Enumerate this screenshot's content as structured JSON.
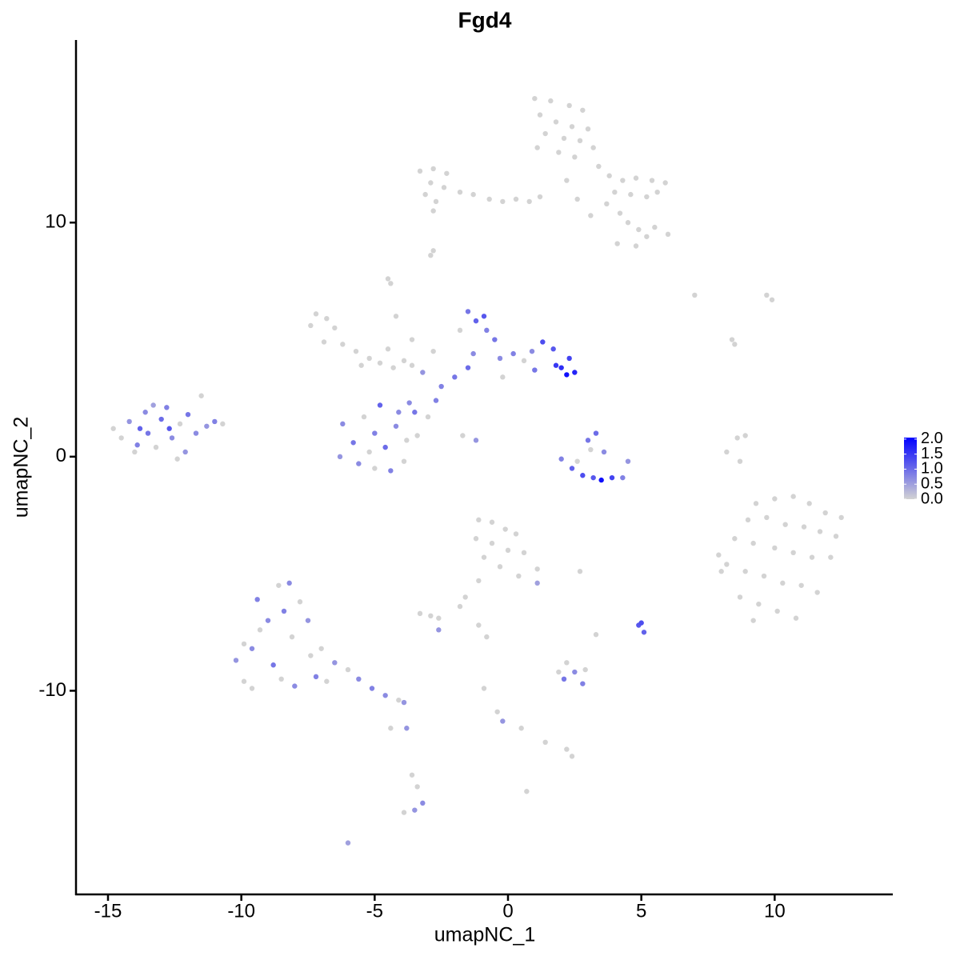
{
  "chart_data": {
    "type": "scatter",
    "title": "Fgd4",
    "xlabel": "umapNC_1",
    "ylabel": "umapNC_2",
    "xlim": [
      -16.2,
      14.4
    ],
    "ylim": [
      -18.7,
      17.8
    ],
    "xticks": [
      -15,
      -10,
      -5,
      0,
      5,
      10
    ],
    "yticks": [
      -10,
      0,
      10
    ],
    "colorscale": {
      "colors": [
        "#d3d3d3",
        "#0000ff"
      ],
      "lim": [
        0,
        2.05
      ],
      "ticks": [
        {
          "value": 0,
          "label": "0.0"
        },
        0.5,
        {
          "value": 1,
          "label": "1.0"
        },
        1.5,
        {
          "value": 2,
          "label": "2.0"
        }
      ]
    },
    "x": [
      1,
      1.6,
      2.3,
      2.8,
      1.2,
      1.8,
      2.4,
      3,
      1.4,
      2.1,
      2.7,
      1.1,
      1.9,
      2.5,
      3.2,
      3.4,
      3.8,
      4.3,
      4.8,
      5.4,
      5.9,
      4,
      4.6,
      5.2,
      5.6,
      3.7,
      4.2,
      4.5,
      4.9,
      5.5,
      6,
      5.2,
      4.1,
      4.8,
      1.2,
      0.8,
      2.6,
      2.2,
      3.1,
      -3.3,
      -2.8,
      -2.3,
      -2.9,
      -2.4,
      -3.1,
      -1.8,
      -1.3,
      -0.7,
      -0.2,
      0.3,
      -2.7,
      -2.8,
      -2.8,
      -2.9,
      -14.5,
      -14.2,
      -13.9,
      -13.6,
      -13.5,
      -13.2,
      -13,
      -12.8,
      -12.6,
      -12.3,
      -12.1,
      -12,
      -11.7,
      -11.5,
      -11.3,
      -11,
      -10.7,
      -14.8,
      -13.8,
      -12.4,
      -12.7,
      -13.3,
      -14,
      -7.4,
      -7.2,
      -6.8,
      -6.5,
      -6.9,
      -6.2,
      -5.7,
      -5.2,
      -4.8,
      -4.3,
      -3.9,
      -3.6,
      -4.5,
      -5.5,
      -4.4,
      -4.5,
      -4.2,
      -3.6,
      -2.8,
      -3.2,
      -3.7,
      -2.5,
      -2,
      -1.5,
      -1.3,
      -1.2,
      -1.5,
      -0.9,
      -0.8,
      -0.5,
      -0.3,
      0.2,
      0.6,
      1,
      1.3,
      1.7,
      2,
      2.2,
      2.5,
      2.3,
      1.8,
      -1.8,
      -0.2,
      0.9,
      -2.7,
      -3,
      -1.7,
      -1.2,
      -6.2,
      -5.8,
      -5.4,
      -5,
      -4.6,
      -4.2,
      -3.8,
      -3.5,
      -5.6,
      -5,
      -4.4,
      -3.9,
      -4.8,
      -6.3,
      -5.2,
      -4.1,
      -3.4,
      2,
      2.4,
      2.8,
      3.2,
      3.5,
      3.9,
      4.3,
      4.5,
      3,
      3.3,
      3.1,
      3.6,
      2.6,
      7,
      8.5,
      8.4,
      9.7,
      9.9,
      8.7,
      8.2,
      8.6,
      8.9,
      9.3,
      10,
      10.7,
      11.3,
      11.9,
      12.5,
      9,
      9.7,
      10.4,
      11.1,
      11.7,
      12.3,
      8.5,
      9.2,
      10,
      10.7,
      11.4,
      12.1,
      8.2,
      8.9,
      9.6,
      10.3,
      11,
      11.6,
      8.7,
      9.4,
      10.1,
      10.8,
      9.2,
      7.9,
      8,
      -10.2,
      -9.9,
      -9.6,
      -9.3,
      -9.4,
      -9,
      -8.8,
      -8.6,
      -8.4,
      -8.1,
      -8,
      -7.8,
      -7.5,
      -7.4,
      -7.2,
      -9.6,
      -8.5,
      -7,
      -6.5,
      -6,
      -5.6,
      -5.1,
      -4.6,
      -4.1,
      -3.9,
      -9.9,
      -8.2,
      -6.8,
      -1.1,
      -0.6,
      -0.1,
      0.3,
      -1.2,
      -0.6,
      0,
      0.6,
      -0.9,
      -0.3,
      1.1,
      -1.1,
      -1.6,
      -1.8,
      1.1,
      2.7,
      0.4,
      -3.3,
      -2.9,
      -2.6,
      -2.6,
      -1.1,
      -0.8,
      4.9,
      5.1,
      5,
      3.3,
      2.2,
      2.5,
      2.1,
      2.8,
      2.9,
      1.9,
      -0.9,
      -0.4,
      -0.2,
      0.5,
      1.4,
      2.2,
      2.4,
      -4.4,
      -3.8,
      -3.6,
      -3.4,
      -3.2,
      -3.5,
      -3.9,
      -6,
      0.7
    ],
    "y": [
      15.3,
      15.2,
      15,
      14.8,
      14.6,
      14.3,
      14.1,
      14,
      13.8,
      13.6,
      13.5,
      13.2,
      13,
      12.8,
      13.2,
      12.4,
      12,
      11.8,
      11.9,
      11.8,
      11.7,
      11.3,
      11.2,
      11.1,
      11.3,
      10.8,
      10.4,
      10,
      9.7,
      9.8,
      9.5,
      9.4,
      9.1,
      9,
      11.1,
      10.9,
      11,
      11.8,
      10.3,
      12.2,
      12.3,
      12.1,
      11.7,
      11.5,
      11.2,
      11.3,
      11.2,
      11,
      10.9,
      11,
      10.9,
      10.5,
      8.8,
      8.6,
      0.8,
      1.5,
      0.5,
      1.9,
      1,
      0.4,
      1.6,
      2.1,
      0.8,
      1.4,
      0.2,
      1.8,
      1,
      2.6,
      1.3,
      1.5,
      1.4,
      1.2,
      1.2,
      -0.1,
      1.2,
      2.2,
      0.2,
      5.6,
      6.1,
      5.9,
      5.5,
      4.9,
      4.8,
      4.5,
      4.2,
      4,
      3.8,
      4.1,
      3.9,
      4.6,
      3.9,
      7.4,
      7.6,
      6,
      5,
      4.5,
      3.6,
      2.3,
      3,
      3.4,
      3.8,
      4.4,
      5.8,
      6.2,
      6,
      5.4,
      5,
      4.2,
      4.4,
      4.1,
      3.7,
      4.9,
      4.6,
      3.8,
      3.5,
      3.6,
      4.2,
      3.9,
      5.4,
      3.4,
      4.5,
      2.4,
      1.7,
      0.9,
      0.7,
      1.4,
      0.6,
      1.7,
      1,
      0.4,
      1.3,
      0.7,
      1.9,
      -0.3,
      -0.5,
      -0.6,
      -0.2,
      2.2,
      0,
      0.2,
      1.9,
      0.9,
      -0.1,
      -0.5,
      -0.8,
      -0.9,
      -1,
      -0.9,
      -0.9,
      -0.2,
      0.7,
      1,
      0.3,
      0.2,
      -0.2,
      6.9,
      4.8,
      5,
      6.9,
      6.7,
      -0.2,
      0.2,
      0.8,
      0.9,
      -2,
      -1.8,
      -1.7,
      -2,
      -2.4,
      -2.6,
      -2.7,
      -2.6,
      -2.9,
      -3,
      -3.2,
      -3.4,
      -3.5,
      -3.7,
      -3.9,
      -4.1,
      -4.3,
      -4.3,
      -4.6,
      -4.9,
      -5.1,
      -5.4,
      -5.5,
      -5.8,
      -6,
      -6.3,
      -6.6,
      -6.9,
      -7,
      -4.2,
      -4.9,
      -8.7,
      -9.6,
      -8.2,
      -7.4,
      -6.1,
      -7,
      -8.9,
      -5.5,
      -6.6,
      -7.7,
      -9.8,
      -6.2,
      -7,
      -8.5,
      -9.4,
      -9.9,
      -9.5,
      -8.2,
      -8.8,
      -9.1,
      -9.5,
      -9.9,
      -10.2,
      -10.4,
      -10.5,
      -8,
      -5.4,
      -9.6,
      -2.7,
      -2.8,
      -3.1,
      -3.3,
      -3.5,
      -3.7,
      -4,
      -4.1,
      -4.3,
      -4.7,
      -4.8,
      -5.3,
      -6,
      -6.4,
      -5.4,
      -4.9,
      -5.1,
      -6.7,
      -6.8,
      -6.9,
      -7.4,
      -7.2,
      -7.7,
      -7.2,
      -7.5,
      -7.1,
      -7.6,
      -8.8,
      -9.2,
      -9.5,
      -9.7,
      -9.1,
      -9.2,
      -9.9,
      -10.9,
      -11.3,
      -11.6,
      -12.2,
      -12.5,
      -12.8,
      -11.6,
      -11.6,
      -13.6,
      -14.1,
      -14.8,
      -15.1,
      -15.2,
      -16.5,
      -14.3
    ],
    "expression": [
      0,
      0,
      0,
      0,
      0,
      0,
      0,
      0,
      0,
      0,
      0,
      0,
      0,
      0,
      0,
      0,
      0,
      0,
      0,
      0,
      0,
      0,
      0,
      0,
      0,
      0,
      0,
      0,
      0,
      0,
      0,
      0,
      0,
      0,
      0,
      0,
      0,
      0,
      0,
      0,
      0,
      0,
      0,
      0,
      0,
      0,
      0,
      0,
      0,
      0,
      0,
      0,
      0,
      0,
      0,
      0.6,
      0.8,
      0.7,
      0.9,
      0,
      1,
      0.8,
      0.7,
      0,
      0.6,
      0.9,
      0.7,
      0,
      0.6,
      0.8,
      0,
      0,
      1.1,
      0,
      1.2,
      0.5,
      0,
      0,
      0,
      0,
      0,
      0,
      0,
      0,
      0,
      0,
      0,
      0,
      0,
      0,
      0,
      0,
      0,
      0,
      0,
      0,
      0.6,
      0.7,
      0.8,
      0.9,
      1,
      0.7,
      1.1,
      0.9,
      1.2,
      0.8,
      0.9,
      0.7,
      0.8,
      0,
      0.9,
      1.3,
      1.2,
      1.6,
      1.9,
      1.7,
      1.4,
      1.5,
      0,
      0,
      0.7,
      0.8,
      0,
      0,
      0.6,
      0.7,
      0.9,
      0,
      0.8,
      1,
      0.7,
      0,
      0.9,
      0.7,
      0,
      0.8,
      0,
      1.1,
      0.6,
      0,
      0.7,
      0,
      0.8,
      1.1,
      1.3,
      1.2,
      1.9,
      1.4,
      0.8,
      0.6,
      0.9,
      1,
      0,
      0.7,
      0,
      0,
      0,
      0,
      0,
      0,
      0,
      0,
      0,
      0,
      0,
      0,
      0,
      0,
      0,
      0,
      0,
      0,
      0,
      0,
      0,
      0,
      0,
      0,
      0,
      0,
      0,
      0,
      0,
      0,
      0,
      0,
      0,
      0,
      0,
      0,
      0,
      0,
      0,
      0,
      0,
      0.6,
      0,
      0.7,
      0,
      0.8,
      0.7,
      0.9,
      0,
      0.8,
      0,
      0.7,
      0,
      0.6,
      0,
      0.8,
      0,
      0,
      0,
      0.6,
      0,
      0.7,
      0.8,
      0.7,
      0,
      0.6,
      0,
      0.7,
      0,
      0,
      0,
      0,
      0,
      0,
      0,
      0,
      0,
      0,
      0,
      0,
      0,
      0,
      0,
      0.5,
      0,
      0,
      0,
      0,
      0,
      0.6,
      0,
      0,
      1.2,
      1.1,
      1.3,
      0,
      0,
      0.7,
      0.9,
      0.8,
      0,
      0,
      0,
      0,
      0.6,
      0,
      0,
      0,
      0,
      0,
      0.6,
      0,
      0,
      0.7,
      0.6,
      0,
      0.5,
      0
    ]
  }
}
